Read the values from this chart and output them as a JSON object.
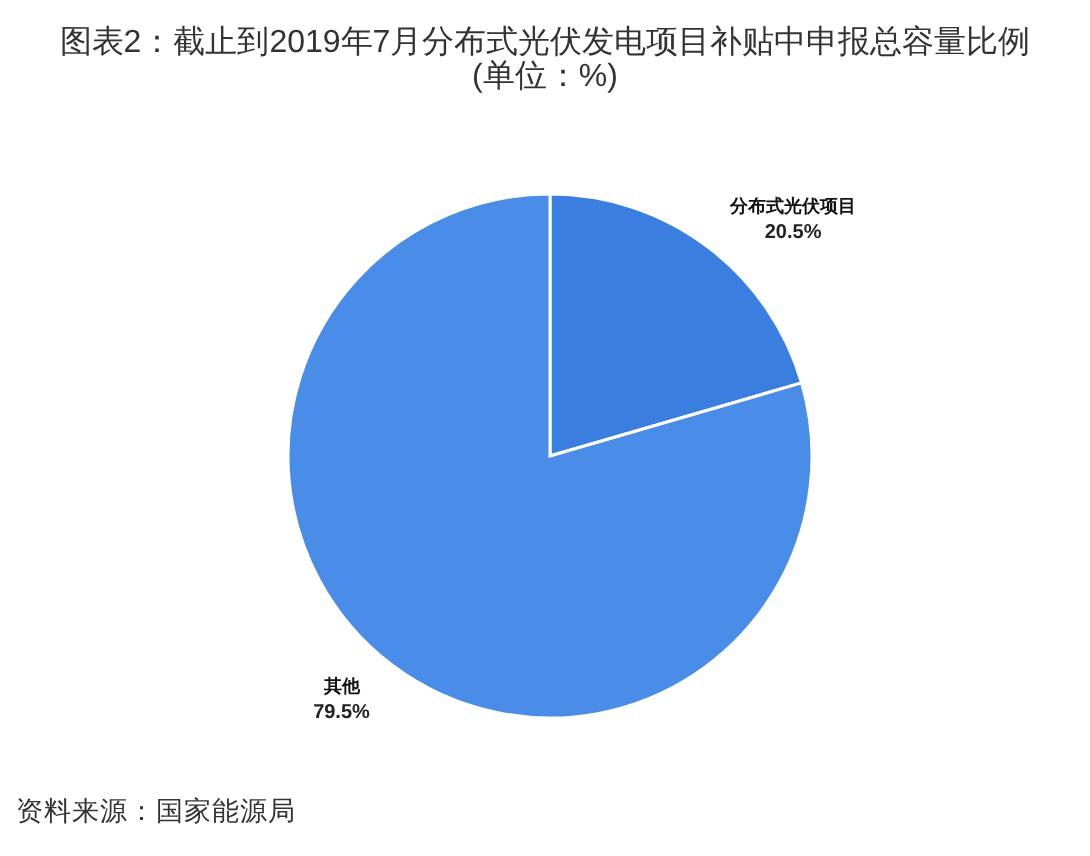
{
  "chart_data": {
    "type": "pie",
    "title": "图表2：截止到2019年7月分布式光伏发电项目补贴中申报总容量比例",
    "subtitle": "(单位：%)",
    "categories": [
      "分布式光伏项目",
      "其他"
    ],
    "values": [
      20.5,
      79.5
    ],
    "value_labels": [
      "20.5%",
      "79.5%"
    ],
    "colors": [
      "#3a7ee0",
      "#4a8de8"
    ],
    "annotations": [
      "资料来源：国家能源局"
    ]
  }
}
